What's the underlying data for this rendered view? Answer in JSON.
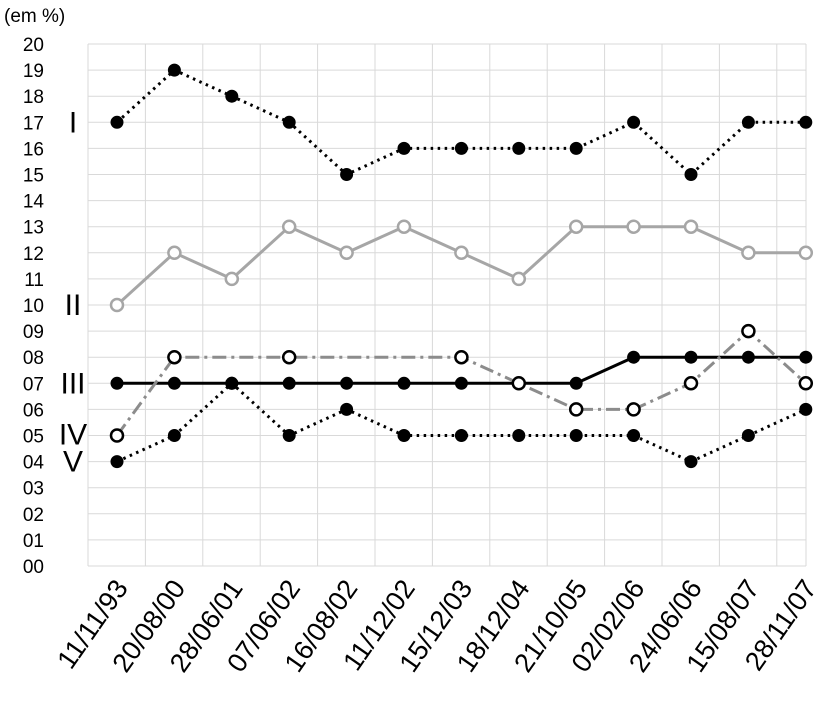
{
  "chart_data": {
    "type": "line",
    "unit_label": "(em %)",
    "y_tick_labels": [
      "00",
      "01",
      "02",
      "03",
      "04",
      "05",
      "06",
      "07",
      "08",
      "09",
      "10",
      "11",
      "12",
      "13",
      "14",
      "15",
      "16",
      "17",
      "18",
      "19",
      "20"
    ],
    "ylim": [
      0,
      20
    ],
    "categories": [
      "11/11/93",
      "20/08/00",
      "28/06/01",
      "07/06/02",
      "16/08/02",
      "11/12/02",
      "15/12/03",
      "18/12/04",
      "21/10/05",
      "02/02/06",
      "24/06/06",
      "15/08/07",
      "28/11/07"
    ],
    "grid": true,
    "series": [
      {
        "name": "I",
        "style": "dotted",
        "color": "#000000",
        "marker": "filled",
        "values": [
          17,
          19,
          18,
          17,
          15,
          16,
          16,
          16,
          16,
          17,
          15,
          17,
          17
        ]
      },
      {
        "name": "II",
        "style": "solid",
        "color": "#a6a6a6",
        "marker": "open",
        "values": [
          10,
          12,
          11,
          13,
          12,
          13,
          12,
          11,
          13,
          13,
          13,
          12,
          12
        ]
      },
      {
        "name": "III",
        "style": "solid",
        "color": "#000000",
        "marker": "filled",
        "values": [
          7,
          7,
          7,
          7,
          7,
          7,
          7,
          7,
          7,
          8,
          8,
          8,
          8
        ]
      },
      {
        "name": "IV",
        "style": "dash-dot",
        "color": "#8c8c8c",
        "marker": "open",
        "values": [
          5,
          8,
          null,
          8,
          null,
          null,
          8,
          7,
          6,
          6,
          7,
          9,
          7
        ]
      },
      {
        "name": "V",
        "style": "dotted",
        "color": "#000000",
        "marker": "filled",
        "values": [
          4,
          5,
          7,
          5,
          6,
          5,
          5,
          5,
          5,
          5,
          4,
          5,
          6
        ]
      }
    ]
  }
}
